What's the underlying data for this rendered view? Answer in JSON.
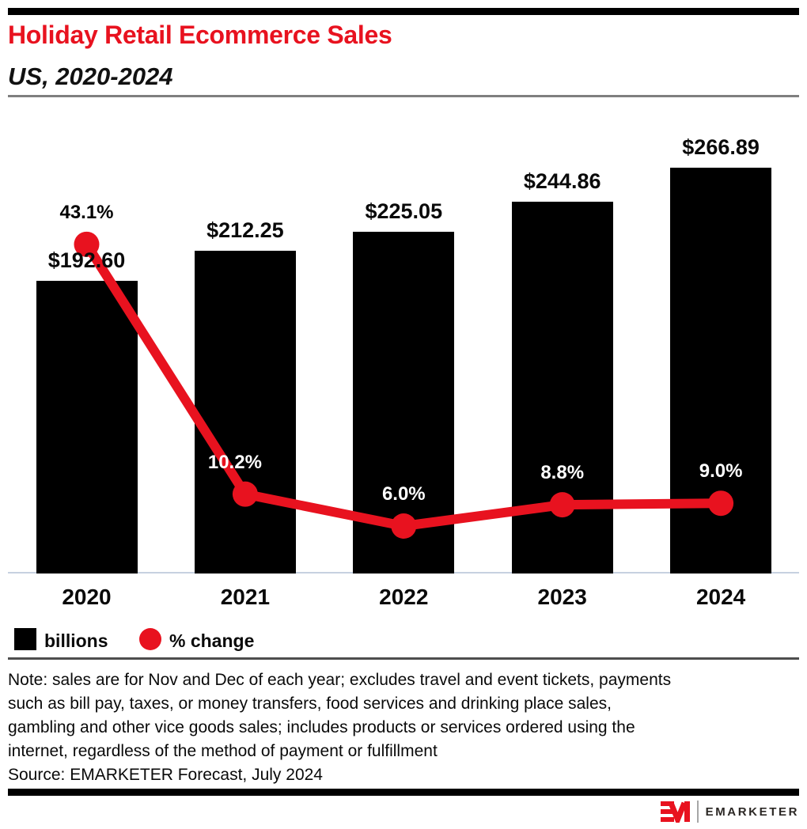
{
  "header": {
    "top_bar": true
  },
  "chart_data": {
    "type": "bar+line combo",
    "title": "Holiday Retail Ecommerce Sales",
    "subtitle": "US, 2020-2024",
    "categories": [
      "2020",
      "2021",
      "2022",
      "2023",
      "2024"
    ],
    "series": [
      {
        "name": "billions",
        "type": "bar",
        "units": "US$ billions",
        "values": [
          192.6,
          212.25,
          225.05,
          244.86,
          266.89
        ],
        "labels": [
          "$192.60",
          "$212.25",
          "$225.05",
          "$244.86",
          "$266.89"
        ],
        "color": "#000000"
      },
      {
        "name": "% change",
        "type": "line",
        "units": "percent year-over-year",
        "values": [
          43.1,
          10.2,
          6.0,
          8.8,
          9.0
        ],
        "labels": [
          "43.1%",
          "10.2%",
          "6.0%",
          "8.8%",
          "9.0%"
        ],
        "color": "#e8121f"
      }
    ],
    "xlabel": "",
    "ylabel": "",
    "grid": false,
    "y_axis_shown": false,
    "legend_position": "bottom-left"
  },
  "legend": {
    "items": [
      {
        "label": "billions",
        "swatch": "black-square"
      },
      {
        "label": "% change",
        "swatch": "red-circle"
      }
    ]
  },
  "note_lines": [
    "Note: sales are for Nov and Dec of each year; excludes travel and event tickets, payments",
    "such as bill pay, taxes, or money transfers, food services and drinking place sales,",
    "gambling and other vice goods sales; includes products or services ordered using the",
    "internet, regardless of the method of payment or fulfillment"
  ],
  "source": "Source: EMARKETER Forecast, July 2024",
  "footer": {
    "brand": "EMARKETER"
  },
  "colors": {
    "accent_red": "#e8121f",
    "bar_black": "#000000",
    "axis_line": "#c7d1e0",
    "pct_label_on_bar": "#ffffff",
    "pct_label_first": "#000000"
  }
}
